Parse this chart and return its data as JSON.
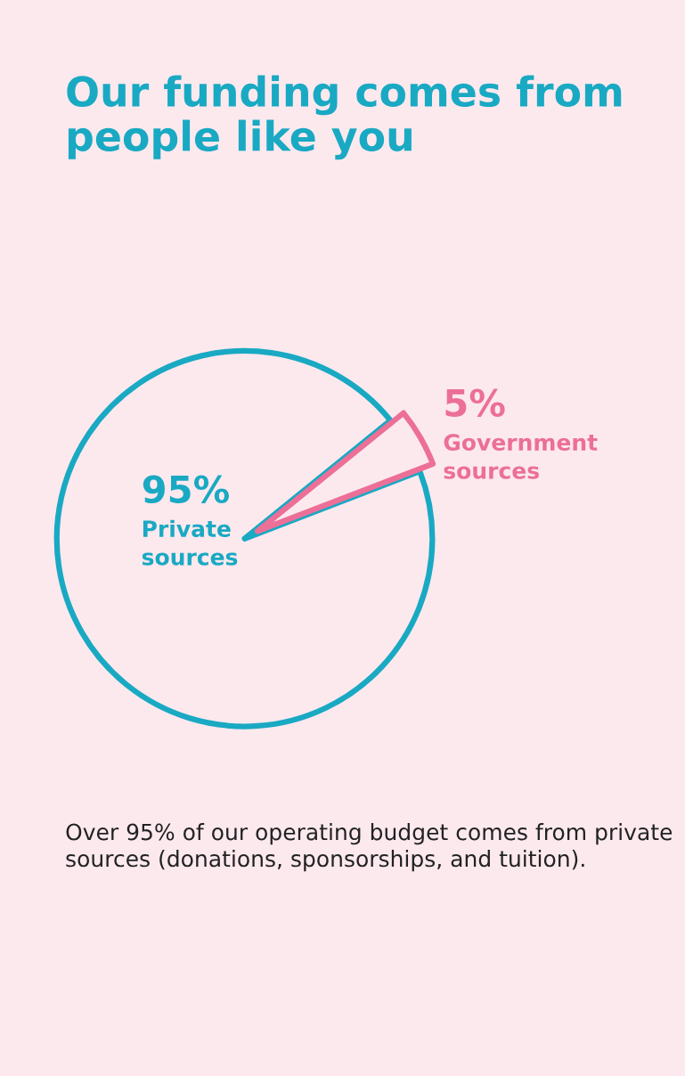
{
  "chart_data": {
    "type": "pie",
    "title": "Our funding comes from people like you",
    "categories": [
      "Private sources",
      "Government sources"
    ],
    "values": [
      95,
      5
    ],
    "value_labels": [
      "95%",
      "5%"
    ],
    "colors": [
      "#19a9c3",
      "#ec6f98"
    ],
    "annotations": [
      "Over 95% of our operating budget comes from private sources (donations, sponsorships, and tuition)."
    ]
  }
}
